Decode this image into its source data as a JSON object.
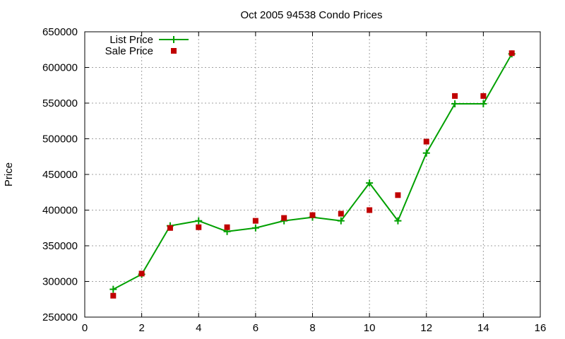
{
  "chart_data": {
    "type": "line",
    "title": "Oct 2005 94538 Condo Prices",
    "xlabel": "",
    "ylabel": "Price",
    "xlim": [
      0,
      16
    ],
    "ylim": [
      250000,
      650000
    ],
    "xticks": [
      0,
      2,
      4,
      6,
      8,
      10,
      12,
      14,
      16
    ],
    "yticks": [
      250000,
      300000,
      350000,
      400000,
      450000,
      500000,
      550000,
      600000,
      650000
    ],
    "grid": true,
    "legend_position": "top-left",
    "series": [
      {
        "name": "List Price",
        "style": "lines+points",
        "color": "#00a000",
        "x": [
          1,
          2,
          3,
          4,
          5,
          6,
          7,
          8,
          9,
          10,
          11,
          12,
          13,
          14,
          15
        ],
        "y": [
          289000,
          310000,
          378000,
          385000,
          370000,
          375000,
          385000,
          390000,
          385000,
          438000,
          385000,
          480000,
          549000,
          549000,
          619000
        ]
      },
      {
        "name": "Sale Price",
        "style": "points",
        "color": "#c00000",
        "x": [
          1,
          2,
          3,
          4,
          5,
          6,
          7,
          8,
          9,
          10,
          11,
          12,
          13,
          14,
          15
        ],
        "y": [
          280000,
          311000,
          375000,
          376000,
          376000,
          385000,
          389000,
          393000,
          395000,
          400000,
          421000,
          496000,
          560000,
          560000,
          620000
        ]
      }
    ]
  }
}
